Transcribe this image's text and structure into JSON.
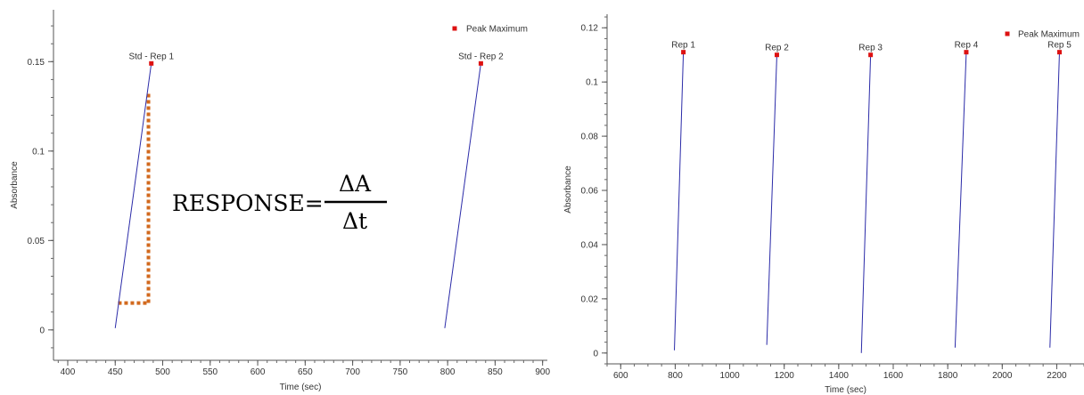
{
  "chart_data": [
    {
      "type": "line",
      "title": "",
      "xlabel": "Time (sec)",
      "ylabel": "Absorbance",
      "xlim": [
        385,
        905
      ],
      "ylim": [
        -0.017,
        0.179
      ],
      "xticks": [
        400,
        450,
        500,
        550,
        600,
        650,
        700,
        750,
        800,
        850,
        900
      ],
      "yticks": [
        0,
        0.05,
        0.1,
        0.15
      ],
      "ytick_labels": [
        "0",
        "0.05",
        "0.1",
        "0.15"
      ],
      "grid": false,
      "legend": {
        "position": "top-right",
        "entries": [
          "Peak Maximum"
        ]
      },
      "line_color": "#2b2ba8",
      "marker_color": "#dd1111",
      "series": [
        {
          "name": "Std - Rep 1",
          "x": [
            450,
            488
          ],
          "y": [
            0.001,
            0.149
          ]
        },
        {
          "name": "Std - Rep 2",
          "x": [
            797,
            835
          ],
          "y": [
            0.001,
            0.149
          ]
        }
      ],
      "annotation": {
        "text": "RESPONSE=",
        "numerator": "ΔA",
        "denominator": "Δt",
        "triangle": {
          "x0": 453,
          "x1": 485,
          "y0": 0.015,
          "y1": 0.132
        },
        "color": "#d2691e"
      }
    },
    {
      "type": "line",
      "title": "",
      "xlabel": "Time (sec)",
      "ylabel": "Absorbance",
      "xlim": [
        550,
        2300
      ],
      "ylim": [
        -0.004,
        0.125
      ],
      "xticks": [
        600,
        800,
        1000,
        1200,
        1400,
        1600,
        1800,
        2000,
        2200
      ],
      "yticks": [
        0,
        0.02,
        0.04,
        0.06,
        0.08,
        0.1,
        0.12
      ],
      "ytick_labels": [
        "0",
        "0.02",
        "0.04",
        "0.06",
        "0.08",
        "0.1",
        "0.12"
      ],
      "grid": false,
      "legend": {
        "position": "top-right",
        "entries": [
          "Peak Maximum"
        ]
      },
      "line_color": "#2b2ba8",
      "marker_color": "#dd1111",
      "series": [
        {
          "name": "Rep 1",
          "x": [
            797,
            830
          ],
          "y": [
            0.001,
            0.111
          ]
        },
        {
          "name": "Rep 2",
          "x": [
            1136,
            1173
          ],
          "y": [
            0.003,
            0.11
          ]
        },
        {
          "name": "Rep 3",
          "x": [
            1483,
            1517
          ],
          "y": [
            0.0,
            0.11
          ]
        },
        {
          "name": "Rep 4",
          "x": [
            1827,
            1868
          ],
          "y": [
            0.002,
            0.111
          ]
        },
        {
          "name": "Rep 5",
          "x": [
            2175,
            2210
          ],
          "y": [
            0.002,
            0.111
          ]
        }
      ]
    }
  ]
}
